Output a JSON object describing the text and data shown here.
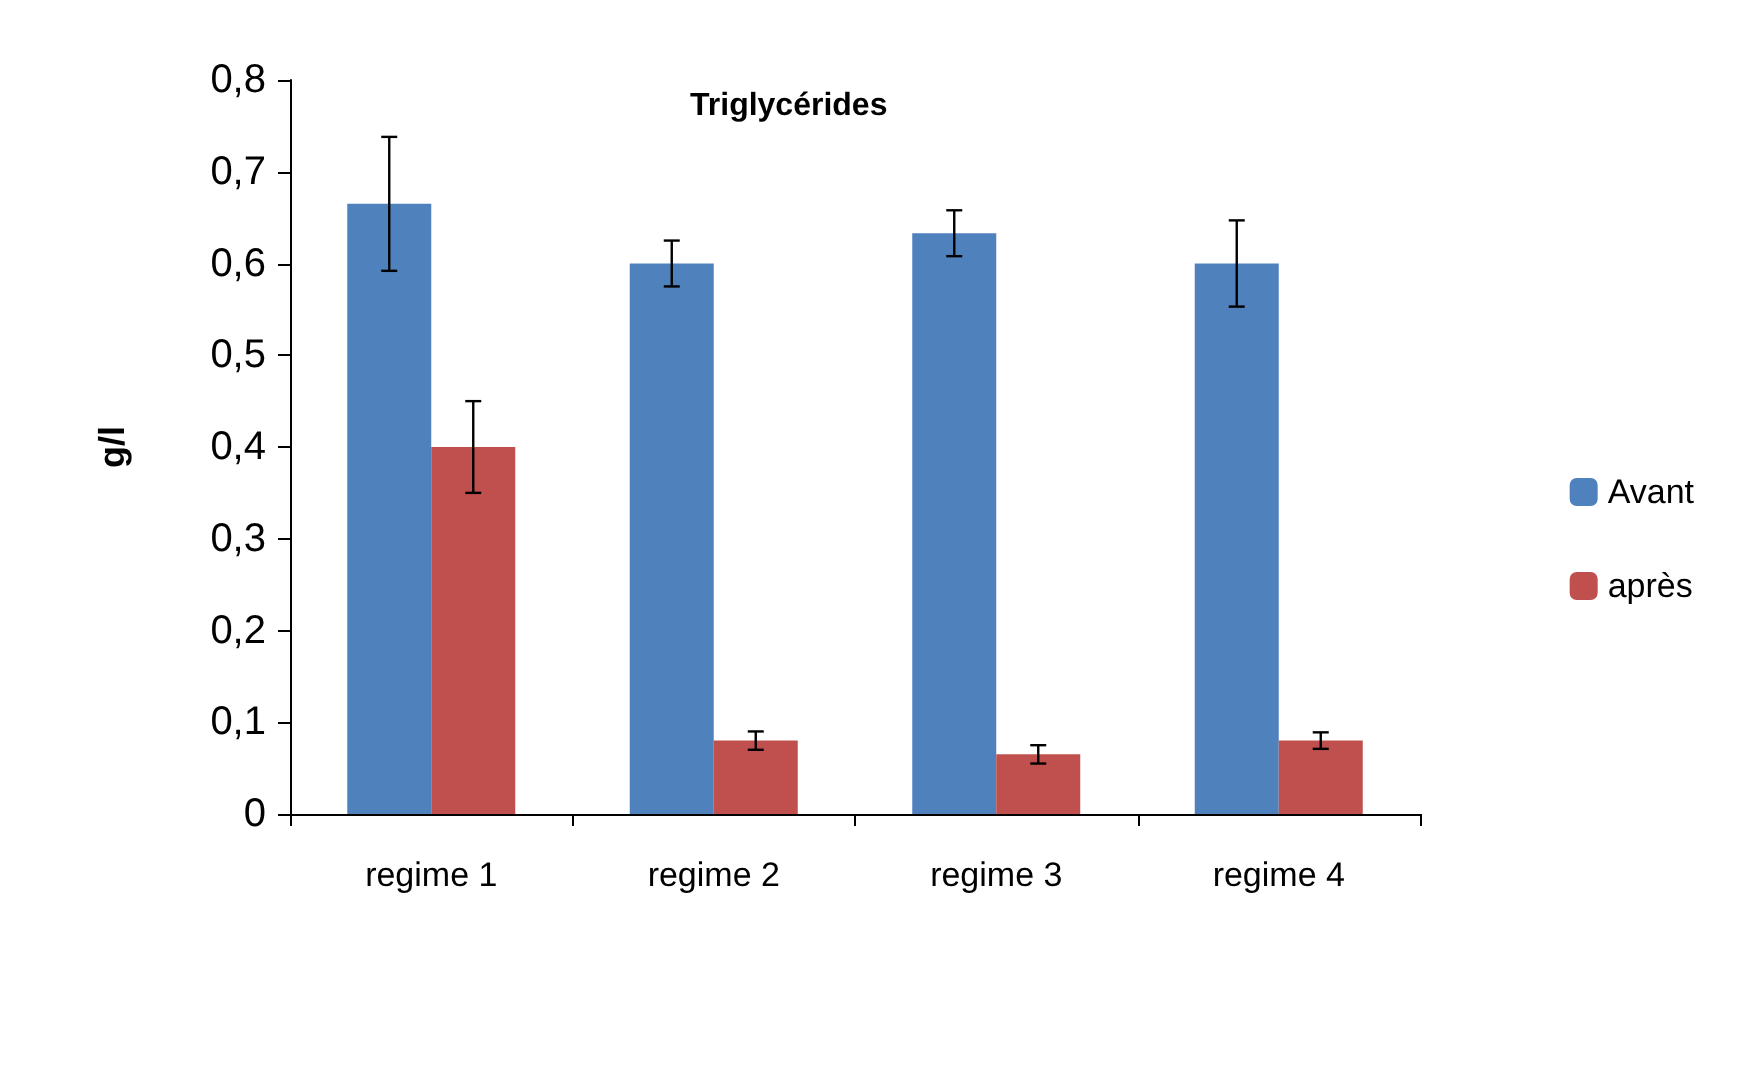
{
  "chart_data": {
    "type": "bar",
    "title": "Triglycérides",
    "ylabel": "g/l",
    "categories": [
      "regime 1",
      "regime 2",
      "regime 3",
      "regime 4"
    ],
    "series": [
      {
        "name": "Avant",
        "color": "#4f81bd",
        "values": [
          0.665,
          0.6,
          0.633,
          0.6
        ],
        "errors": [
          0.073,
          0.025,
          0.025,
          0.047
        ]
      },
      {
        "name": "après",
        "color": "#c0504d",
        "values": [
          0.4,
          0.08,
          0.065,
          0.08
        ],
        "errors": [
          0.05,
          0.01,
          0.01,
          0.009
        ]
      }
    ],
    "ylim": [
      0,
      0.8
    ],
    "yticks": [
      0,
      {
        "value": 0.1,
        "label": "0,1"
      },
      {
        "value": 0.2,
        "label": "0,2"
      },
      {
        "value": 0.3,
        "label": "0,3"
      },
      {
        "value": 0.4,
        "label": "0,4"
      },
      {
        "value": 0.5,
        "label": "0,5"
      },
      {
        "value": 0.6,
        "label": "0,6"
      },
      {
        "value": 0.7,
        "label": "0,7"
      },
      {
        "value": 0.8,
        "label": "0,8"
      }
    ],
    "grid": false,
    "legend": "right"
  }
}
